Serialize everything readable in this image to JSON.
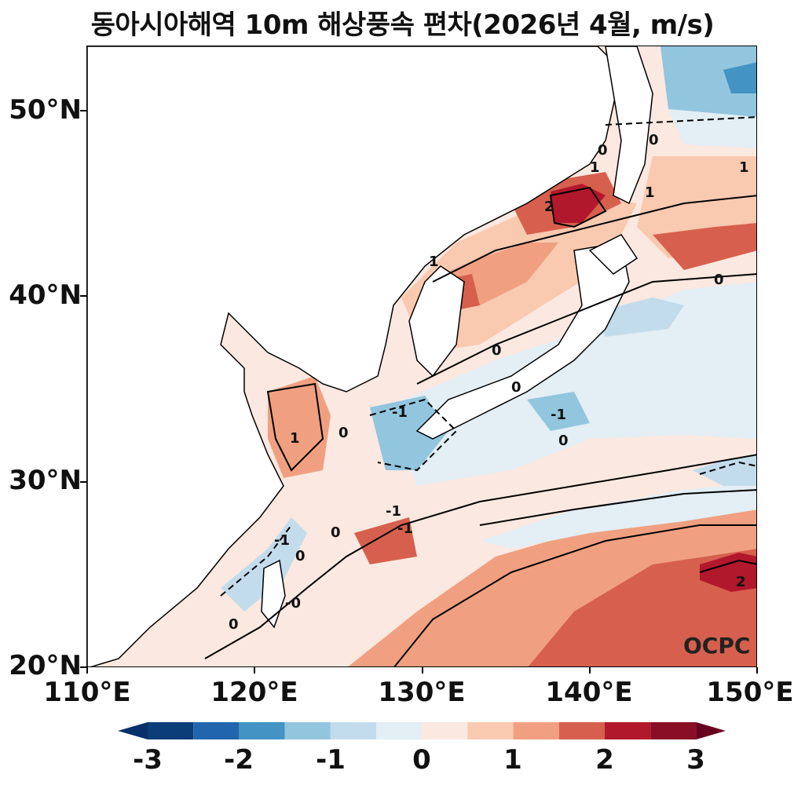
{
  "title": "동아시아해역 10m 해상풍속 편차(2026년 4월, m/s)",
  "logo_text": "OCPC",
  "axes": {
    "lat_labels": [
      "50°N",
      "40°N",
      "30°N",
      "20°N"
    ],
    "lon_labels": [
      "110°E",
      "120°E",
      "130°E",
      "140°E",
      "150°E"
    ],
    "lat_range": [
      20,
      53.5
    ],
    "lon_range": [
      110,
      150
    ]
  },
  "contour_labels": [
    "0",
    "0",
    "1",
    "1",
    "2",
    "1",
    "1",
    "0",
    "0",
    "-1",
    "-1",
    "1",
    "0",
    "0",
    "-1",
    "0",
    "-1",
    "0",
    "-1",
    "0",
    "-0",
    "0",
    "2"
  ],
  "colorbar": {
    "labels": [
      "-3",
      "-2",
      "-1",
      "0",
      "1",
      "2",
      "3"
    ],
    "colors": [
      "#0b3d78",
      "#2166ac",
      "#4393c3",
      "#92c5de",
      "#c3dcec",
      "#e3eef5",
      "#fbe8e0",
      "#f9c9b0",
      "#f0a080",
      "#d6604d",
      "#b2182b",
      "#8a0e26"
    ],
    "under_color": "#08306b",
    "over_color": "#67001f"
  },
  "chart_data": {
    "type": "heatmap",
    "title": "동아시아해역 10m 해상풍속 편차(2026년 4월, m/s)",
    "xlabel": "",
    "ylabel": "",
    "xlim": [
      110,
      150
    ],
    "ylim": [
      20,
      53.5
    ],
    "vmin": -3,
    "vmax": 3,
    "legend": "bottom",
    "grid": false
  }
}
